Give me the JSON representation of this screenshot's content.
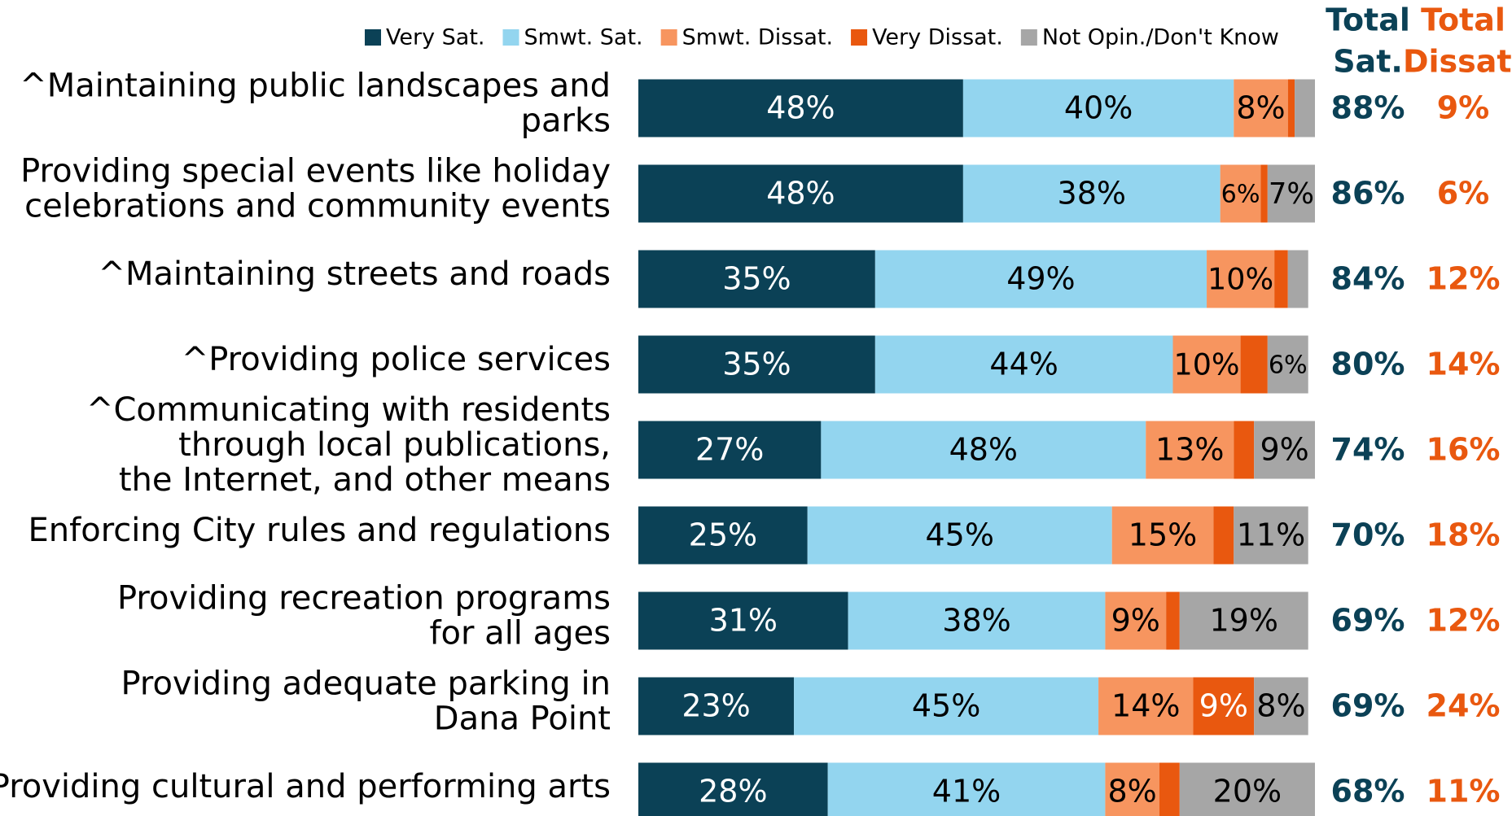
{
  "chart_data": {
    "type": "stacked-bar",
    "orientation": "horizontal",
    "categories": [
      "^Maintaining public landscapes and\nparks",
      "Providing special events like holiday\ncelebrations and community events",
      "^Maintaining streets and roads",
      "^Providing police services",
      "^Communicating with residents\nthrough local publications,\nthe Internet, and other means",
      "Enforcing City rules and regulations",
      "Providing recreation programs\nfor all ages",
      "Providing adequate parking in\nDana Point",
      "Providing cultural and performing arts"
    ],
    "series": [
      {
        "name": "Very Sat.",
        "color": "#0b4156",
        "label_color": "#ffffff",
        "values": [
          48,
          48,
          35,
          35,
          27,
          25,
          31,
          23,
          28
        ],
        "value_labels": [
          "48%",
          "48%",
          "35%",
          "35%",
          "27%",
          "25%",
          "31%",
          "23%",
          "28%"
        ]
      },
      {
        "name": "Smwt. Sat.",
        "color": "#93d5ef",
        "label_color": "#000000",
        "values": [
          40,
          38,
          49,
          44,
          48,
          45,
          38,
          45,
          41
        ],
        "value_labels": [
          "40%",
          "38%",
          "49%",
          "44%",
          "48%",
          "45%",
          "38%",
          "45%",
          "41%"
        ]
      },
      {
        "name": "Smwt. Dissat.",
        "color": "#f7955f",
        "label_color": "#000000",
        "values": [
          8,
          6,
          10,
          10,
          13,
          15,
          9,
          14,
          8
        ],
        "value_labels": [
          "8%",
          "6%",
          "10%",
          "10%",
          "13%",
          "15%",
          "9%",
          "14%",
          "8%"
        ]
      },
      {
        "name": "Very Dissat.",
        "color": "#e9580f",
        "label_color": "#ffffff",
        "values": [
          1,
          1,
          2,
          4,
          3,
          3,
          2,
          9,
          3
        ],
        "value_labels": [
          null,
          null,
          null,
          null,
          null,
          null,
          null,
          "9%",
          null
        ]
      },
      {
        "name": "Not Opin./Don't Know",
        "color": "#a6a6a6",
        "label_color": "#000000",
        "values": [
          3,
          7,
          3,
          6,
          9,
          11,
          19,
          8,
          20
        ],
        "value_labels": [
          null,
          "7%",
          null,
          "6%",
          "9%",
          "11%",
          "19%",
          "8%",
          "20%"
        ]
      }
    ],
    "totals": [
      {
        "name": "Total Sat.",
        "color": "#0b4156",
        "values": [
          88,
          86,
          84,
          80,
          74,
          70,
          69,
          69,
          68
        ],
        "value_labels": [
          "88%",
          "86%",
          "84%",
          "80%",
          "74%",
          "70%",
          "69%",
          "69%",
          "68%"
        ]
      },
      {
        "name": "Total Dissat.",
        "color": "#e9580f",
        "values": [
          9,
          6,
          12,
          14,
          16,
          18,
          12,
          24,
          11
        ],
        "value_labels": [
          "9%",
          "6%",
          "12%",
          "14%",
          "16%",
          "18%",
          "12%",
          "24%",
          "11%"
        ]
      }
    ],
    "xlim": [
      0,
      100
    ],
    "legend": "top"
  }
}
